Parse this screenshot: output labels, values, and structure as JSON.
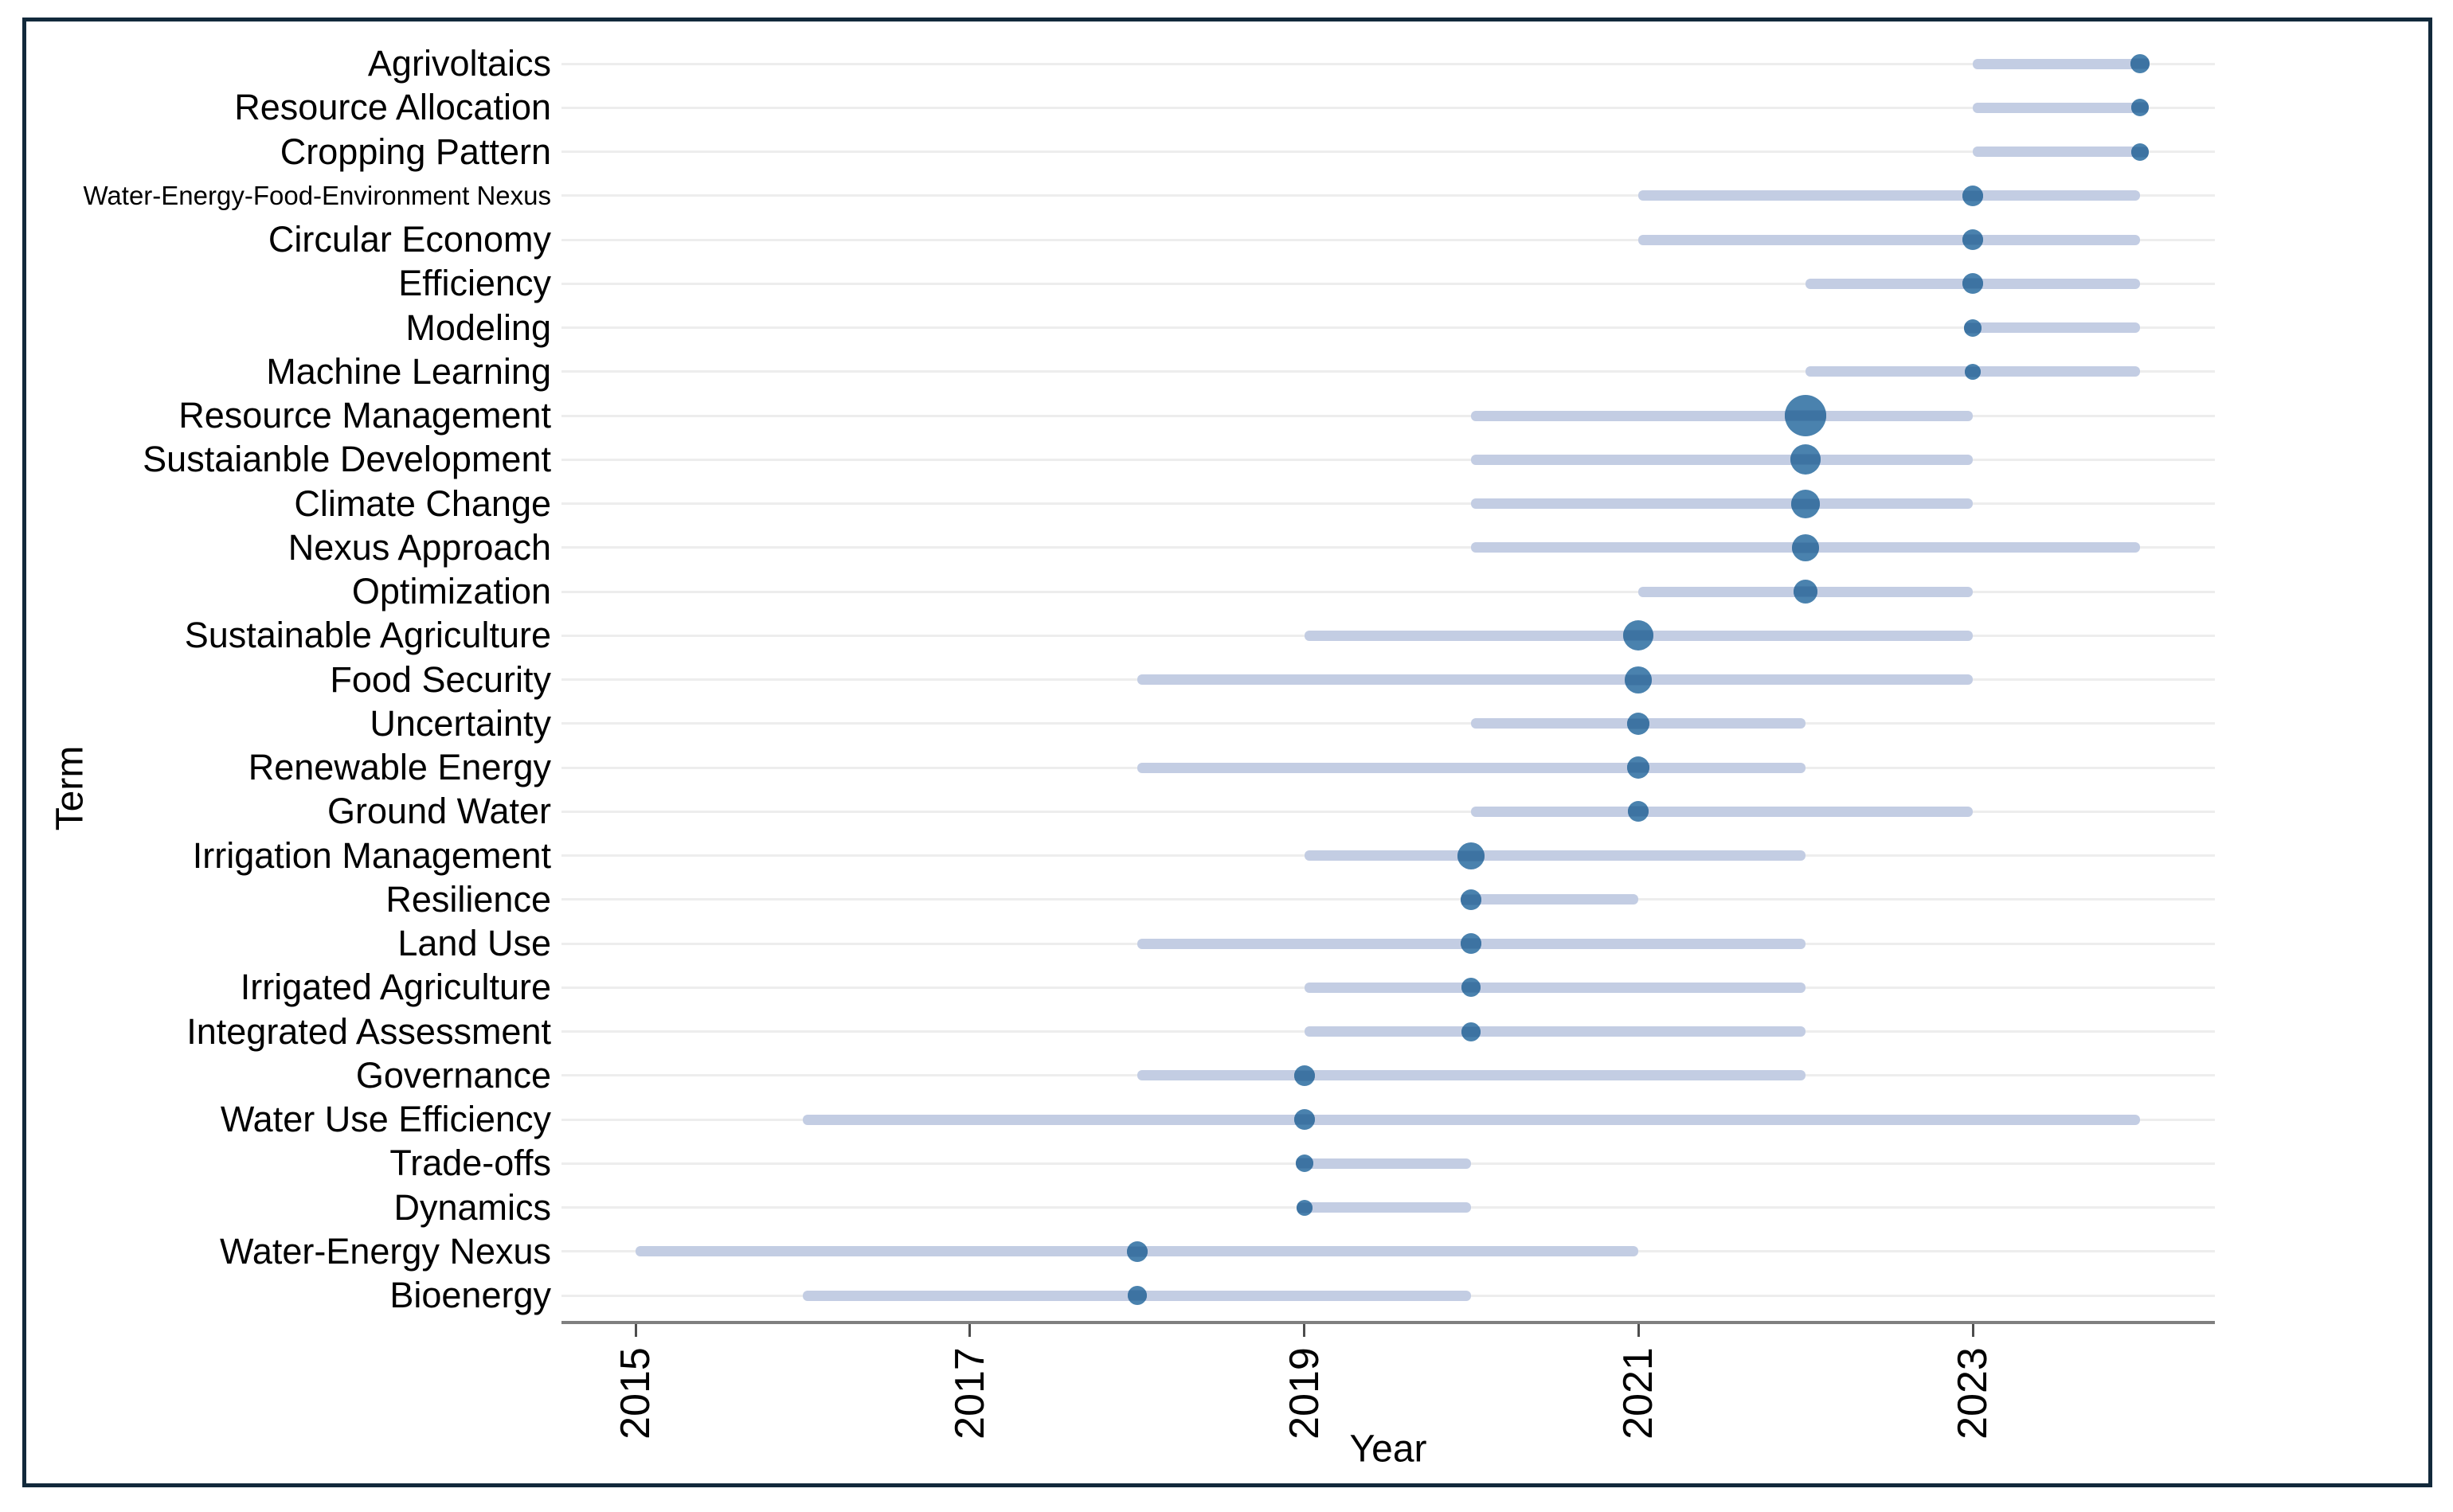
{
  "chart_data": {
    "type": "bubble-range",
    "title": "",
    "xlabel": "Year",
    "ylabel": "Term",
    "x_ticks": [
      2015,
      2017,
      2019,
      2021,
      2023
    ],
    "xlim": [
      2014.55,
      2024.45
    ],
    "grid": "horizontal-light",
    "legend": "none",
    "description": "Trend topics chart: for each term a horizontal line spans first-quartile to third-quartile year, with a bubble at the median year sized by term frequency",
    "colors": {
      "bubble": "#4a82ae",
      "bubble_stripe": "#3d73a2",
      "range_line": "#c3cde3",
      "gridline": "#ededed",
      "axis_line": "#7f7f7f",
      "tick": "#4d4d4d",
      "text": "#000000",
      "frame_border": "#12293b",
      "background": "#ffffff"
    },
    "terms": [
      {
        "term": "Agrivoltaics",
        "q1": 2023,
        "median": 2024,
        "q3": 2024,
        "size": 12
      },
      {
        "term": "Resource Allocation",
        "q1": 2023,
        "median": 2024,
        "q3": 2024,
        "size": 11
      },
      {
        "term": "Cropping Pattern",
        "q1": 2023,
        "median": 2024,
        "q3": 2024,
        "size": 11
      },
      {
        "term": "Water-Energy-Food-Environment Nexus",
        "q1": 2021,
        "median": 2023,
        "q3": 2024,
        "size": 13
      },
      {
        "term": "Circular Economy",
        "q1": 2021,
        "median": 2023,
        "q3": 2024,
        "size": 13
      },
      {
        "term": "Efficiency",
        "q1": 2022,
        "median": 2023,
        "q3": 2024,
        "size": 13
      },
      {
        "term": "Modeling",
        "q1": 2023,
        "median": 2023,
        "q3": 2024,
        "size": 11
      },
      {
        "term": "Machine Learning",
        "q1": 2022,
        "median": 2023,
        "q3": 2024,
        "size": 10
      },
      {
        "term": "Resource Management",
        "q1": 2020,
        "median": 2022,
        "q3": 2023,
        "size": 26
      },
      {
        "term": "Sustaianble Development",
        "q1": 2020,
        "median": 2022,
        "q3": 2023,
        "size": 19
      },
      {
        "term": "Climate Change",
        "q1": 2020,
        "median": 2022,
        "q3": 2023,
        "size": 18
      },
      {
        "term": "Nexus Approach",
        "q1": 2020,
        "median": 2022,
        "q3": 2024,
        "size": 17
      },
      {
        "term": "Optimization",
        "q1": 2021,
        "median": 2022,
        "q3": 2023,
        "size": 15
      },
      {
        "term": "Sustainable Agriculture",
        "q1": 2019,
        "median": 2021,
        "q3": 2023,
        "size": 19
      },
      {
        "term": "Food Security",
        "q1": 2018,
        "median": 2021,
        "q3": 2023,
        "size": 17
      },
      {
        "term": "Uncertainty",
        "q1": 2020,
        "median": 2021,
        "q3": 2022,
        "size": 14
      },
      {
        "term": "Renewable Energy",
        "q1": 2018,
        "median": 2021,
        "q3": 2022,
        "size": 14
      },
      {
        "term": "Ground Water",
        "q1": 2020,
        "median": 2021,
        "q3": 2023,
        "size": 13
      },
      {
        "term": "Irrigation Management",
        "q1": 2019,
        "median": 2020,
        "q3": 2022,
        "size": 17
      },
      {
        "term": "Resilience",
        "q1": 2020,
        "median": 2020,
        "q3": 2021,
        "size": 13
      },
      {
        "term": "Land Use",
        "q1": 2018,
        "median": 2020,
        "q3": 2022,
        "size": 13
      },
      {
        "term": "Irrigated Agriculture",
        "q1": 2019,
        "median": 2020,
        "q3": 2022,
        "size": 12
      },
      {
        "term": "Integrated Assessment",
        "q1": 2019,
        "median": 2020,
        "q3": 2022,
        "size": 12
      },
      {
        "term": "Governance",
        "q1": 2018,
        "median": 2019,
        "q3": 2022,
        "size": 13
      },
      {
        "term": "Water Use Efficiency",
        "q1": 2016,
        "median": 2019,
        "q3": 2024,
        "size": 13
      },
      {
        "term": "Trade-offs",
        "q1": 2019,
        "median": 2019,
        "q3": 2020,
        "size": 11
      },
      {
        "term": "Dynamics",
        "q1": 2019,
        "median": 2019,
        "q3": 2020,
        "size": 10
      },
      {
        "term": "Water-Energy Nexus",
        "q1": 2015,
        "median": 2018,
        "q3": 2021,
        "size": 13
      },
      {
        "term": "Bioenergy",
        "q1": 2016,
        "median": 2018,
        "q3": 2020,
        "size": 12
      }
    ]
  }
}
